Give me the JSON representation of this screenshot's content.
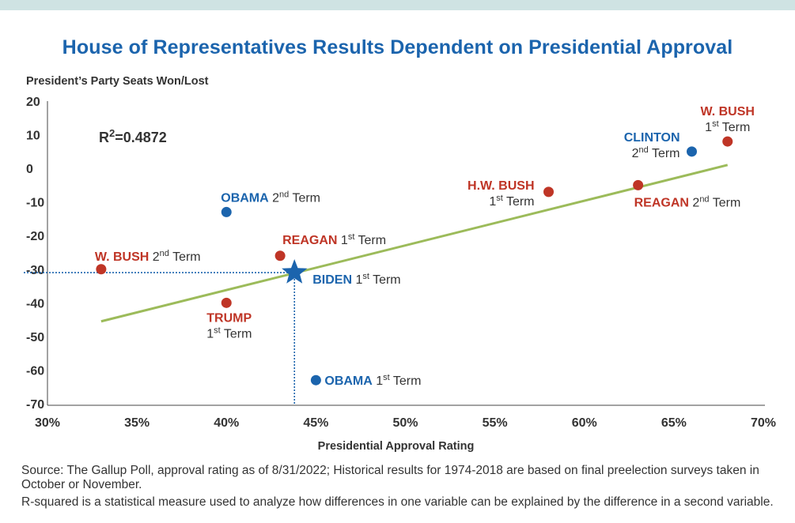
{
  "chart_data": {
    "type": "scatter",
    "title": "House of Representatives Results Dependent on Presidential Approval",
    "ylabel": "President’s Party Seats Won/Lost",
    "xlabel": "Presidential Approval Rating",
    "xlim": [
      30,
      70
    ],
    "ylim": [
      -70,
      20
    ],
    "x_ticks": [
      30,
      35,
      40,
      45,
      50,
      55,
      60,
      65,
      70
    ],
    "x_tick_labels": [
      "30%",
      "35%",
      "40%",
      "45%",
      "50%",
      "55%",
      "60%",
      "65%",
      "70%"
    ],
    "y_ticks": [
      20,
      10,
      0,
      -10,
      -20,
      -30,
      -40,
      -50,
      -60,
      -70
    ],
    "y_tick_labels": [
      "20",
      "10",
      "0",
      "-10",
      "-20",
      "-30",
      "-40",
      "-50",
      "-60",
      "-70"
    ],
    "r_squared_label": "R",
    "r_squared_sup": "2",
    "r_squared_value": "=0.4872",
    "trendline": {
      "x": [
        33,
        68
      ],
      "y": [
        -45.5,
        1
      ]
    },
    "points": [
      {
        "name": "W. BUSH",
        "term": "1",
        "term_sup": "st",
        "term_word": "Term",
        "x": 68,
        "y": 8,
        "party": "R"
      },
      {
        "name": "CLINTON",
        "term": "2",
        "term_sup": "nd",
        "term_word": "Term",
        "x": 66,
        "y": 5,
        "party": "D"
      },
      {
        "name": "REAGAN",
        "term": "2",
        "term_sup": "nd",
        "term_word": "Term",
        "x": 63,
        "y": -5,
        "party": "R"
      },
      {
        "name": "H.W. BUSH",
        "term": "1",
        "term_sup": "st",
        "term_word": "Term",
        "x": 58,
        "y": -7,
        "party": "R"
      },
      {
        "name": "OBAMA",
        "term": "2",
        "term_sup": "nd",
        "term_word": "Term",
        "x": 40,
        "y": -13,
        "party": "D"
      },
      {
        "name": "REAGAN",
        "term": "1",
        "term_sup": "st",
        "term_word": "Term",
        "x": 43,
        "y": -26,
        "party": "R"
      },
      {
        "name": "W. BUSH",
        "term": "2",
        "term_sup": "nd",
        "term_word": "Term",
        "x": 33,
        "y": -30,
        "party": "R"
      },
      {
        "name": "TRUMP",
        "term": "1",
        "term_sup": "st",
        "term_word": "Term",
        "x": 40,
        "y": -40,
        "party": "R"
      },
      {
        "name": "OBAMA",
        "term": "1",
        "term_sup": "st",
        "term_word": "Term",
        "x": 45,
        "y": -63,
        "party": "D"
      },
      {
        "name": "BIDEN",
        "term": "1",
        "term_sup": "st",
        "term_word": "Term",
        "x": 43.8,
        "y": -31,
        "party": "D",
        "marker": "star"
      }
    ],
    "reference_lines": {
      "x": 43.8,
      "y": -31
    },
    "colors": {
      "republican": "#bf3526",
      "democrat": "#1b64ad",
      "trendline": "#9cbb5a",
      "reference": "#1b64ad",
      "axis": "#444444",
      "text": "#333333",
      "topbar": "#cfe3e3"
    }
  },
  "footer": {
    "source": "Source: The Gallup Poll, approval rating as of 8/31/2022; Historical results for 1974-2018 are based on final preelection surveys taken in October or November.",
    "rsq_note": "R-squared is a statistical measure used to analyze how differences in one variable can be explained by the difference in a second variable."
  }
}
